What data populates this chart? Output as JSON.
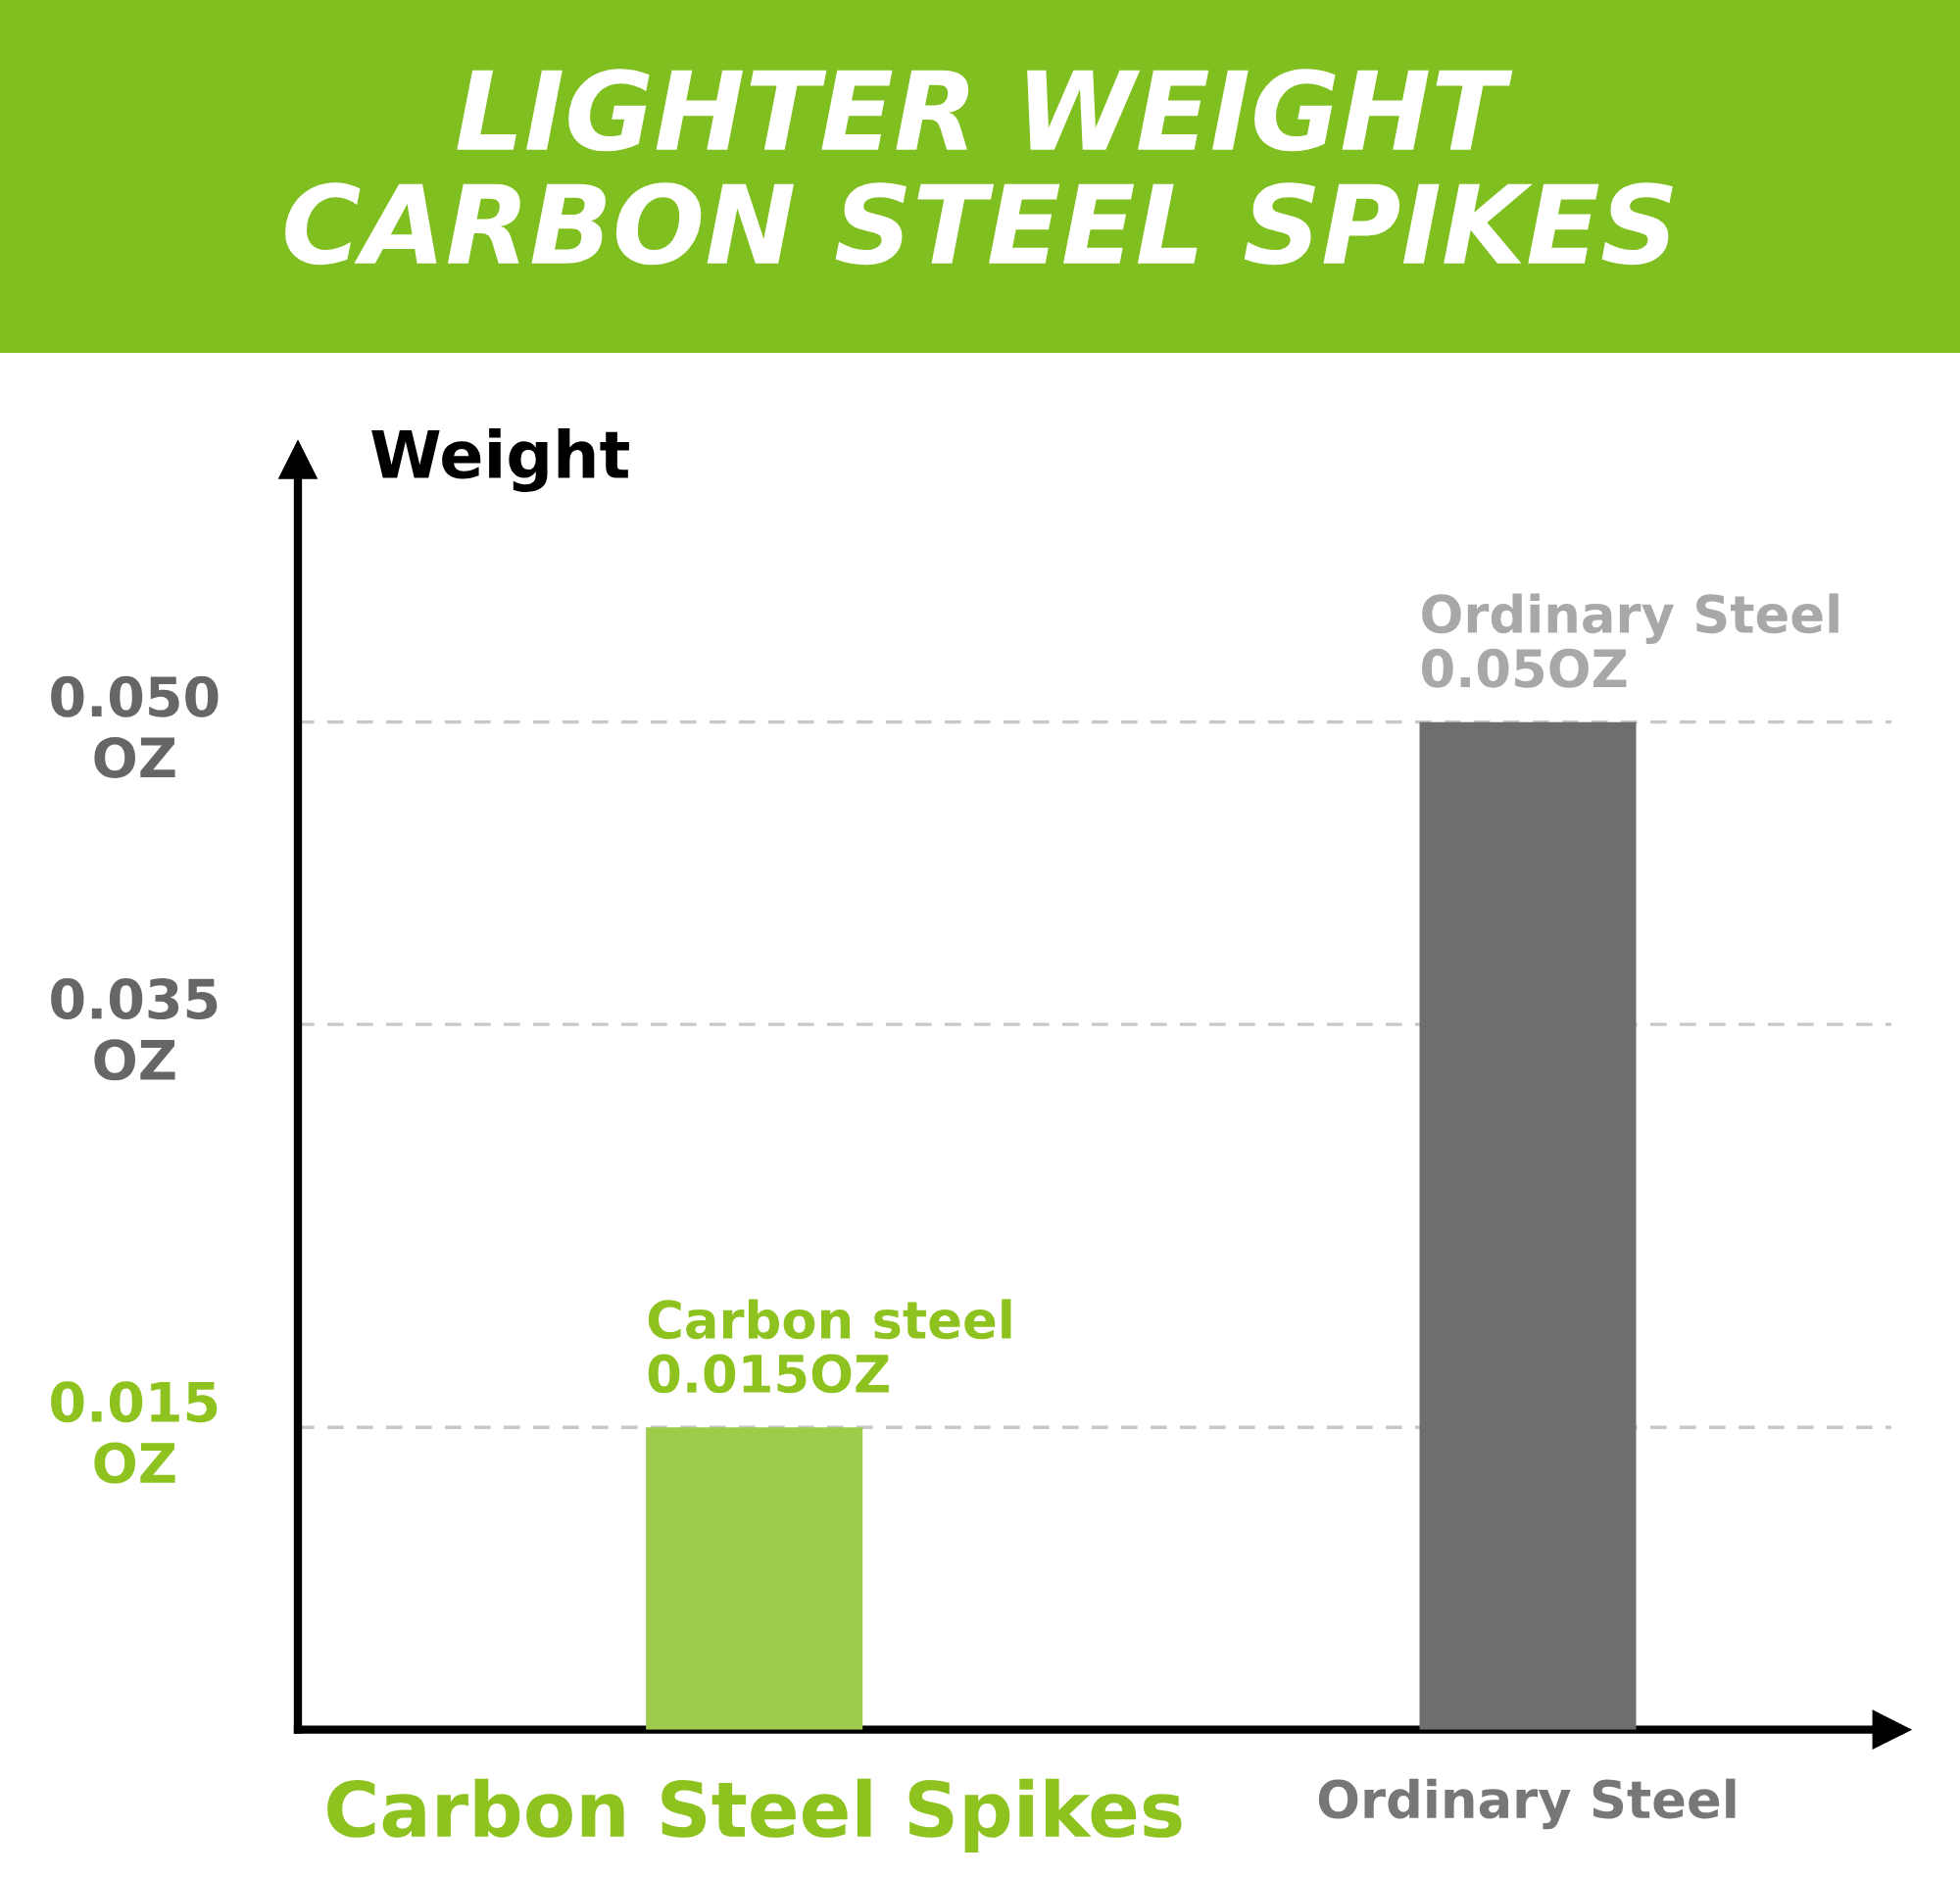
{
  "chart_data": {
    "type": "bar",
    "title": "LIGHTER WEIGHT\nCARBON STEEL SPIKES",
    "ylabel": "Weight",
    "categories": [
      "Carbon Steel Spikes",
      "Ordinary Steel"
    ],
    "values": [
      0.015,
      0.05
    ],
    "colors": [
      "#9ccc4a",
      "#6e6e6e"
    ],
    "value_labels": [
      "Carbon steel\n0.015OZ",
      "Ordinary Steel\n0.05OZ"
    ],
    "ylim": [
      0,
      0.063
    ],
    "yticks": [
      {
        "value": 0.015,
        "label": "0.015\nOZ"
      },
      {
        "value": 0.035,
        "label": "0.035\nOZ"
      },
      {
        "value": 0.05,
        "label": "0.050\nOZ"
      }
    ],
    "grid": "y"
  }
}
